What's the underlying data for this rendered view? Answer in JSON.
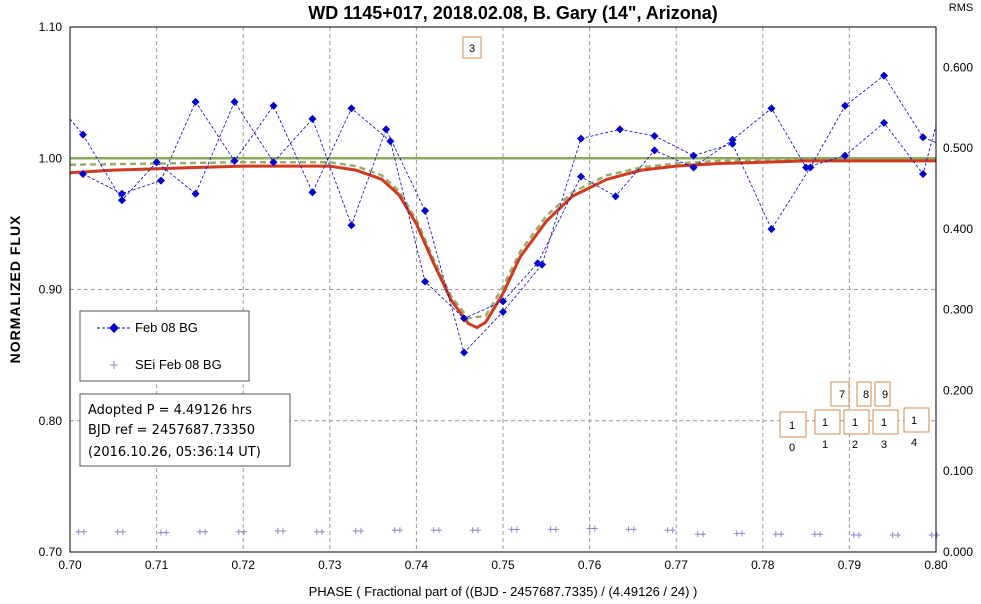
{
  "chart_data": {
    "type": "scatter",
    "title": "WD 1145+017, 2018.02.08, B. Gary  (14\", Arizona)",
    "xlabel": "PHASE  ( Fractional part of ((BJD - 2457687.7335)  / (4.49126 / 24) )",
    "ylabel": "NORMALIZED  FLUX",
    "y2label": "RMS",
    "xlim": [
      0.7,
      0.8
    ],
    "ylim": [
      0.7,
      1.1
    ],
    "y2lim": [
      0.0,
      0.65
    ],
    "x_ticks": [
      "0.70",
      "0.71",
      "0.72",
      "0.73",
      "0.74",
      "0.75",
      "0.76",
      "0.77",
      "0.78",
      "0.79",
      "0.80"
    ],
    "y_ticks": [
      "0.70",
      "0.80",
      "0.90",
      "1.00",
      "1.10"
    ],
    "y2_ticks": [
      "0.000",
      "0.100",
      "0.200",
      "0.300",
      "0.400",
      "0.500",
      "0.600"
    ],
    "grid": true,
    "legend_position": "left",
    "series": [
      {
        "name": "Feb 08 BG",
        "color": "#0000cc",
        "x": [
          0.7,
          0.7015,
          0.706,
          0.71,
          0.7145,
          0.719,
          0.7235,
          0.728,
          0.7325,
          0.7365,
          0.741,
          0.7455,
          0.75,
          0.7545,
          0.759,
          0.7635,
          0.7675,
          0.772,
          0.7765,
          0.781,
          0.7855,
          0.7895,
          0.794,
          0.7985,
          0.8
        ],
        "y": [
          1.03,
          1.018,
          0.968,
          0.997,
          0.973,
          1.043,
          0.997,
          1.03,
          0.949,
          1.022,
          0.96,
          0.852,
          0.883,
          0.919,
          1.015,
          1.022,
          1.017,
          1.002,
          1.011,
          0.946,
          0.993,
          1.04,
          1.063,
          1.016,
          1.012
        ]
      },
      {
        "name": "",
        "color": "#0000cc",
        "x": [
          0.7015,
          0.706,
          0.7105,
          0.7145,
          0.719,
          0.7235,
          0.728,
          0.7325,
          0.737,
          0.741,
          0.7455,
          0.75,
          0.754,
          0.759,
          0.763,
          0.7675,
          0.772,
          0.7765,
          0.781,
          0.785,
          0.7895,
          0.794,
          0.7985,
          0.8
        ],
        "y": [
          0.988,
          0.973,
          0.983,
          1.043,
          0.998,
          1.04,
          0.974,
          1.038,
          1.013,
          0.906,
          0.878,
          0.891,
          0.92,
          0.986,
          0.971,
          1.006,
          0.993,
          1.014,
          1.038,
          0.993,
          1.002,
          1.027,
          0.988,
          1.025
        ]
      },
      {
        "name": "SEi Feb 08 BG",
        "color": "#8a8acc",
        "x": [
          0.701,
          0.7055,
          0.7105,
          0.715,
          0.7195,
          0.724,
          0.7285,
          0.733,
          0.7375,
          0.742,
          0.7465,
          0.751,
          0.7555,
          0.76,
          0.7645,
          0.769,
          0.7725,
          0.777,
          0.7815,
          0.786,
          0.7905,
          0.795,
          0.7995
        ],
        "y": [
          0.025,
          0.025,
          0.024,
          0.025,
          0.025,
          0.026,
          0.025,
          0.026,
          0.027,
          0.027,
          0.027,
          0.028,
          0.028,
          0.029,
          0.028,
          0.027,
          0.022,
          0.023,
          0.022,
          0.022,
          0.021,
          0.021,
          0.021
        ]
      },
      {
        "name": "",
        "color": "#d13a1e",
        "x": [
          0.7,
          0.705,
          0.71,
          0.715,
          0.72,
          0.725,
          0.73,
          0.733,
          0.736,
          0.738,
          0.74,
          0.742,
          0.744,
          0.746,
          0.747,
          0.748,
          0.75,
          0.752,
          0.755,
          0.758,
          0.762,
          0.766,
          0.77,
          0.775,
          0.78,
          0.785,
          0.79,
          0.795,
          0.8
        ],
        "y": [
          0.989,
          0.991,
          0.992,
          0.993,
          0.994,
          0.994,
          0.994,
          0.991,
          0.984,
          0.972,
          0.95,
          0.92,
          0.892,
          0.874,
          0.871,
          0.875,
          0.897,
          0.925,
          0.952,
          0.971,
          0.984,
          0.991,
          0.994,
          0.996,
          0.997,
          0.998,
          0.998,
          0.998,
          0.998
        ]
      },
      {
        "name": "",
        "color": "#9caa6e",
        "x": [
          0.7,
          0.71,
          0.72,
          0.73,
          0.733,
          0.736,
          0.738,
          0.74,
          0.742,
          0.744,
          0.746,
          0.748,
          0.75,
          0.752,
          0.755,
          0.758,
          0.762,
          0.766,
          0.77,
          0.775,
          0.78,
          0.79,
          0.8
        ],
        "y": [
          0.995,
          0.996,
          0.997,
          0.997,
          0.994,
          0.987,
          0.975,
          0.953,
          0.923,
          0.895,
          0.878,
          0.88,
          0.902,
          0.929,
          0.956,
          0.974,
          0.987,
          0.993,
          0.996,
          0.998,
          0.998,
          0.999,
          0.999
        ]
      },
      {
        "name": "",
        "color": "#8fa860",
        "x": [
          0.7,
          0.8
        ],
        "y": [
          1.0,
          1.0
        ]
      }
    ],
    "annotations": [
      "3",
      "7",
      "8",
      "9",
      "1",
      "1",
      "1",
      "1",
      "1",
      "0",
      "1",
      "2",
      "3",
      "4"
    ]
  },
  "info_box": {
    "line1": "Adopted P = 4.49126 hrs",
    "line2": "BJD ref = 2457687.73350",
    "line3": "(2016.10.26, 05:36:14 UT)"
  },
  "markers": {
    "m3": "3",
    "m7": "7",
    "m8": "8",
    "m9": "9",
    "m10_top": "1",
    "m10_bot": "0",
    "m11_top": "1",
    "m11_bot": "1",
    "m12_top": "1",
    "m12_bot": "2",
    "m13_top": "1",
    "m13_bot": "3",
    "m14_top": "1",
    "m14_bot": "4"
  }
}
